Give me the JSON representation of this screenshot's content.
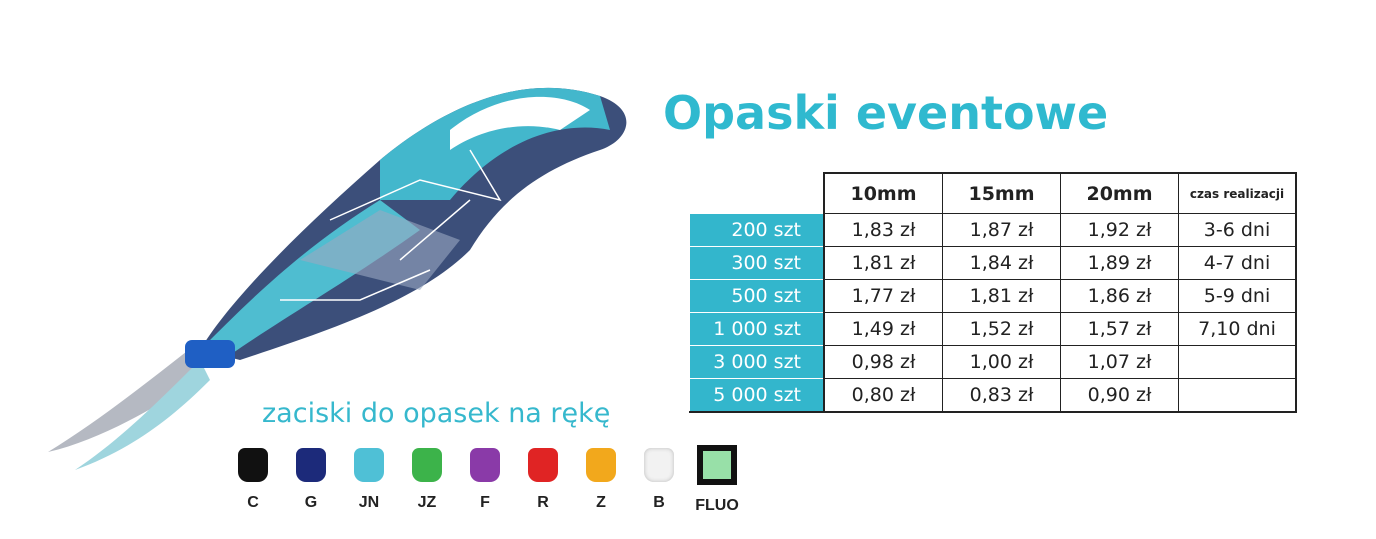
{
  "title": "Opaski eventowe",
  "table": {
    "headers": [
      "10mm",
      "15mm",
      "20mm",
      "czas realizacji"
    ],
    "rows": [
      {
        "qty": "200 szt",
        "p10": "1,83 zł",
        "p15": "1,87 zł",
        "p20": "1,92 zł",
        "time": "3-6 dni"
      },
      {
        "qty": "300 szt",
        "p10": "1,81 zł",
        "p15": "1,84 zł",
        "p20": "1,89 zł",
        "time": "4-7 dni"
      },
      {
        "qty": "500 szt",
        "p10": "1,77 zł",
        "p15": "1,81 zł",
        "p20": "1,86 zł",
        "time": "5-9 dni"
      },
      {
        "qty": "1 000 szt",
        "p10": "1,49 zł",
        "p15": "1,52 zł",
        "p20": "1,57 zł",
        "time": "7,10 dni"
      },
      {
        "qty": "3 000 szt",
        "p10": "0,98 zł",
        "p15": "1,00 zł",
        "p20": "1,07 zł",
        "time": ""
      },
      {
        "qty": "5 000 szt",
        "p10": "0,80 zł",
        "p15": "0,83 zł",
        "p20": "0,90 zł",
        "time": ""
      }
    ]
  },
  "clips": {
    "title": "zaciski do opasek na rękę",
    "items": [
      {
        "code": "C",
        "color": "#111111"
      },
      {
        "code": "G",
        "color": "#1c2a7a"
      },
      {
        "code": "JN",
        "color": "#4fc0d6"
      },
      {
        "code": "JZ",
        "color": "#3cb34a"
      },
      {
        "code": "F",
        "color": "#8a3aa8"
      },
      {
        "code": "R",
        "color": "#e02424"
      },
      {
        "code": "Z",
        "color": "#f2a81c"
      },
      {
        "code": "B",
        "color": "#f2f2f2"
      },
      {
        "code": "FLUO",
        "color": "#98e0a8"
      }
    ]
  },
  "colors": {
    "accent": "#33b6cc"
  }
}
